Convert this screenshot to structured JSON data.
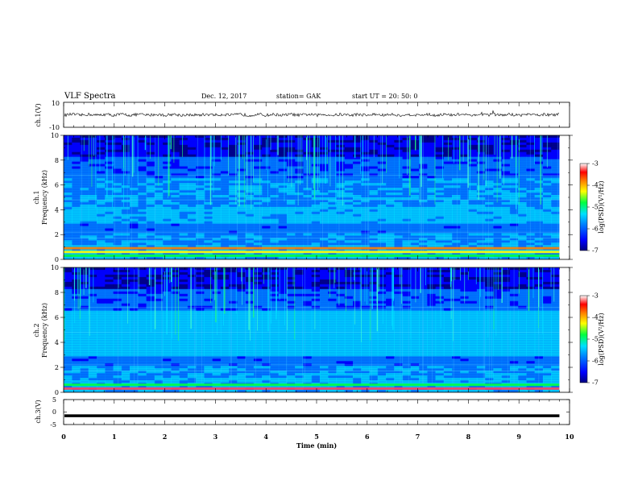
{
  "header": {
    "title": "VLF Spectra",
    "date": "Dec. 12, 2017",
    "station": "station= GAK",
    "start": "start  UT =   20: 50: 0"
  },
  "colors": {
    "spectrum": [
      "#00007f",
      "#0000ff",
      "#0080ff",
      "#00d8ff",
      "#20ffd0",
      "#00ff40",
      "#ffff00",
      "#ff8000",
      "#ff0000",
      "#ffffff"
    ],
    "trace": "#000000"
  },
  "chart_data": [
    {
      "type": "line",
      "name": "ch1-waveform",
      "ylabel": "ch.1(V)",
      "ylim": [
        -10,
        10
      ],
      "yticks": [
        "10",
        "-10"
      ],
      "x_range": [
        0,
        10
      ],
      "x_data_extent": [
        0,
        9.8
      ],
      "baseline": 0,
      "amplitude": 1.2
    },
    {
      "type": "heatmap",
      "name": "ch1-spectrogram",
      "ylabel_line1": "ch.1",
      "ylabel_line2": "Frequency (kHz)",
      "ylim": [
        0,
        10
      ],
      "yticks": [
        "0",
        "2",
        "4",
        "6",
        "8",
        "10"
      ],
      "x_range": [
        0,
        10
      ],
      "x_data_extent": [
        0,
        9.8
      ],
      "colorbar": {
        "label": "log(PSD)(V²/Hz)",
        "range": [
          -7,
          -3
        ],
        "ticks": [
          "-3",
          "-4",
          "-5",
          "-6",
          "-7"
        ]
      },
      "bands_khz": [
        0.3,
        0.6,
        0.9
      ]
    },
    {
      "type": "heatmap",
      "name": "ch2-spectrogram",
      "ylabel_line1": "ch.2",
      "ylabel_line2": "Frequency (kHz)",
      "ylim": [
        0,
        10
      ],
      "yticks": [
        "0",
        "2",
        "4",
        "6",
        "8",
        "10"
      ],
      "x_range": [
        0,
        10
      ],
      "x_data_extent": [
        0,
        9.8
      ],
      "colorbar": {
        "label": "log(PSD)(V²/Hz)",
        "range": [
          -7,
          -3
        ],
        "ticks": [
          "-3",
          "-4",
          "-5",
          "-6",
          "-7"
        ]
      },
      "bands_khz": [
        0.3,
        0.6
      ]
    },
    {
      "type": "line",
      "name": "ch3-waveform",
      "ylabel": "ch.3(V)",
      "ylim": [
        -5,
        5
      ],
      "yticks": [
        "5",
        "0",
        "-5"
      ],
      "x_range": [
        0,
        10
      ],
      "x_data_extent": [
        0,
        9.8
      ],
      "baseline": -1.5,
      "amplitude": 0
    }
  ],
  "xaxis": {
    "label": "Time (min)",
    "ticks": [
      "0",
      "1",
      "2",
      "3",
      "4",
      "5",
      "6",
      "7",
      "8",
      "9",
      "10"
    ]
  }
}
